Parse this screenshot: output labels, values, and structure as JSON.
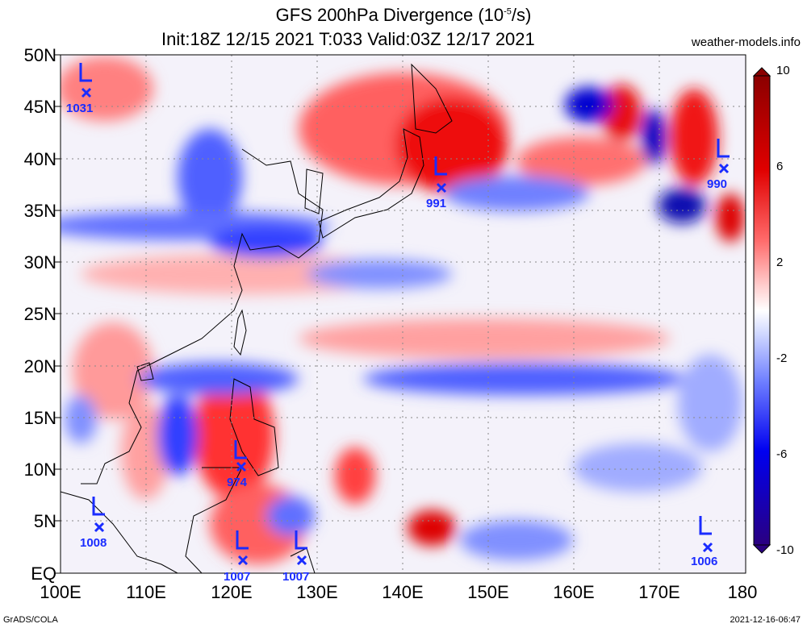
{
  "title": {
    "line1": "GFS 200hPa Divergence (10",
    "line1_sup": "-5",
    "line1_end": "/s)",
    "line2": "Init:18Z 12/15 2021 T:033 Valid:03Z 12/17 2021"
  },
  "site": "weather-models.info",
  "footer": {
    "left": "GrADS/COLA",
    "right": "2021-12-16-06:47"
  },
  "y_labels": [
    "50N",
    "45N",
    "40N",
    "35N",
    "30N",
    "25N",
    "20N",
    "15N",
    "10N",
    "5N",
    "EQ"
  ],
  "x_labels": [
    "100E",
    "110E",
    "120E",
    "130E",
    "140E",
    "150E",
    "160E",
    "170E",
    "180"
  ],
  "colorbar": {
    "labels": [
      "10",
      "6",
      "2",
      "-2",
      "-6",
      "-10"
    ],
    "colors": [
      "#8b0000",
      "#c00000",
      "#ff0000",
      "#ff6060",
      "#ff9a9a",
      "#ffd0d0",
      "#ffffff",
      "#d0d8ff",
      "#9aa8ff",
      "#6070ff",
      "#0000ff",
      "#0000c0",
      "#2a0080"
    ]
  },
  "lows": [
    {
      "value": "1031"
    },
    {
      "value": "991"
    },
    {
      "value": "990"
    },
    {
      "value": "974"
    },
    {
      "value": "1008"
    },
    {
      "value": "1007"
    },
    {
      "value": "1007"
    },
    {
      "value": "1006"
    }
  ]
}
